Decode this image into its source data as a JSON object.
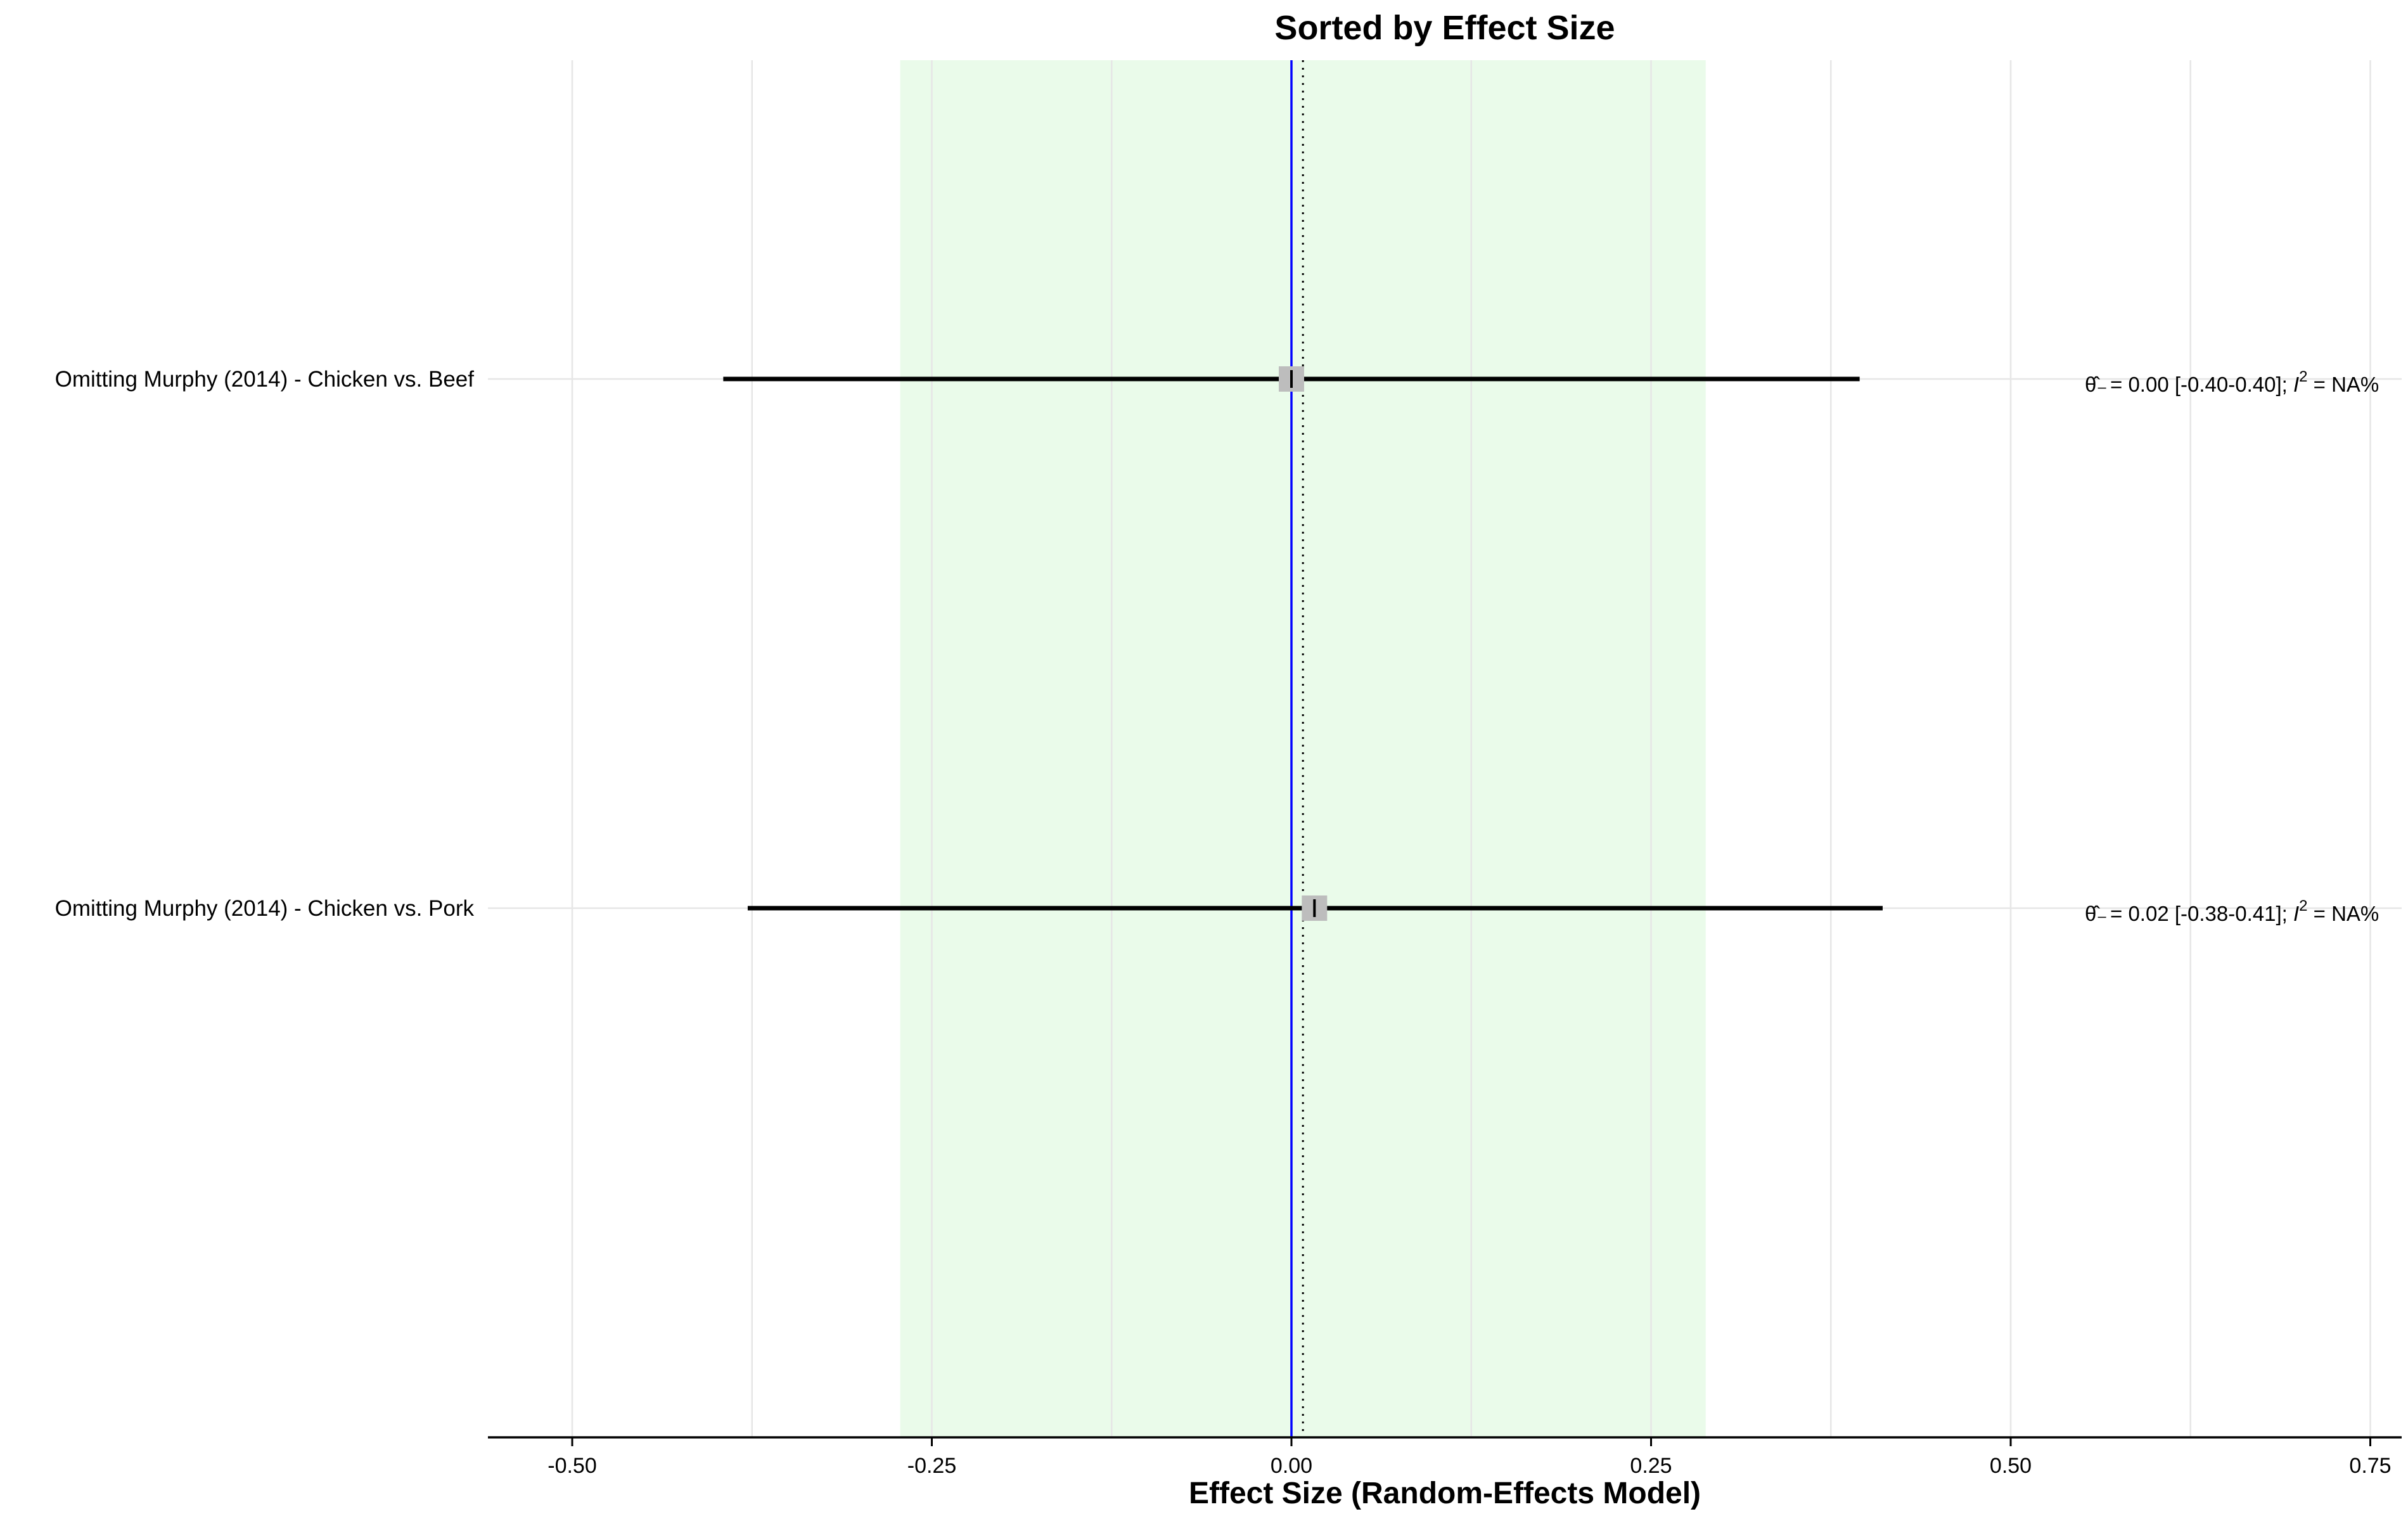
{
  "chart_data": {
    "type": "forest",
    "title": "Sorted by Effect Size",
    "xlabel": "Effect Size (Random-Effects Model)",
    "xlim": [
      -0.55,
      0.77
    ],
    "xticks": [
      -0.5,
      -0.25,
      0.0,
      0.25,
      0.5,
      0.75
    ],
    "xtick_labels": [
      "-0.50",
      "-0.25",
      "0.00",
      "0.25",
      "0.50",
      "0.75"
    ],
    "minor_gridlines": [
      -0.375,
      -0.125,
      0.125,
      0.375,
      0.625
    ],
    "shaded_interval": [
      -0.272,
      0.288
    ],
    "reference_lines": [
      {
        "value": 0.0,
        "style": "solid",
        "color": "#0000ff"
      },
      {
        "value": 0.008,
        "style": "dotted",
        "color": "#000000"
      }
    ],
    "rows": [
      {
        "label": "Omitting Murphy (2014) - Chicken vs. Beef",
        "estimate": 0.0,
        "ci_low": -0.395,
        "ci_high": 0.395,
        "annotation": {
          "lead": " = 0.00 [-0.40-0.40]; ",
          "i2": "I",
          "sup": "2",
          "tail": " = NA%"
        }
      },
      {
        "label": "Omitting Murphy (2014) - Chicken vs. Pork",
        "estimate": 0.016,
        "ci_low": -0.378,
        "ci_high": 0.411,
        "annotation": {
          "lead": " = 0.02 [-0.38-0.41]; ",
          "i2": "I",
          "sup": "2",
          "tail": " = NA%"
        }
      }
    ],
    "colors": {
      "shade": "#eafbea",
      "grid": "#e6e6e6",
      "ci_line": "#000000",
      "point": "#bdbdbd",
      "zero_line": "#0000ff"
    }
  }
}
